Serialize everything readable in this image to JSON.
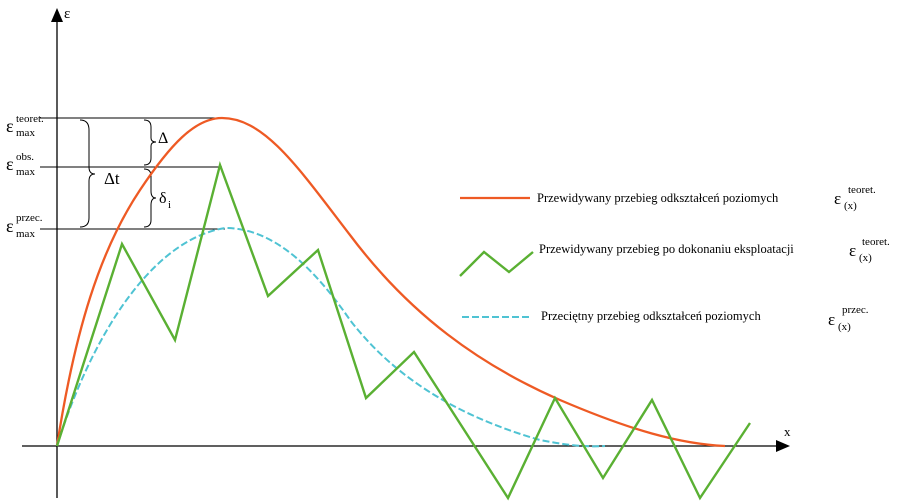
{
  "axes": {
    "y_label": "ε",
    "x_label": "x"
  },
  "levels": {
    "teoret": {
      "base": "ε",
      "sup": "teoret.",
      "sub": "max"
    },
    "obs": {
      "base": "ε",
      "sup": "obs.",
      "sub": "max"
    },
    "przec": {
      "base": "ε",
      "sup": "przec.",
      "sub": "max"
    }
  },
  "annotations": {
    "delta": "Δ",
    "delta_t": "Δt",
    "delta_i": "δ",
    "delta_i_sub": "i"
  },
  "legend": [
    {
      "text": "Przewidywany przebieg odkształceń poziomych",
      "sym": "ε",
      "sub": "(x)",
      "sup": "teoret.",
      "color": "#ee5a24",
      "style": "solid"
    },
    {
      "text": "Przewidywany przebieg po dokonaniu eksploatacji",
      "sym": "ε",
      "sub": "(x)",
      "sup": "teoret.",
      "color": "#5ab033",
      "style": "zigzag"
    },
    {
      "text": "Przeciętny przebieg odkształceń poziomych",
      "sym": "ε",
      "sub": "(x)",
      "sup": "przec.",
      "color": "#4fc3d3",
      "style": "dashed"
    }
  ],
  "curves": {
    "theoretical_color": "#ee5a24",
    "observed_color": "#5ab033",
    "average_color": "#4fc3d3"
  }
}
